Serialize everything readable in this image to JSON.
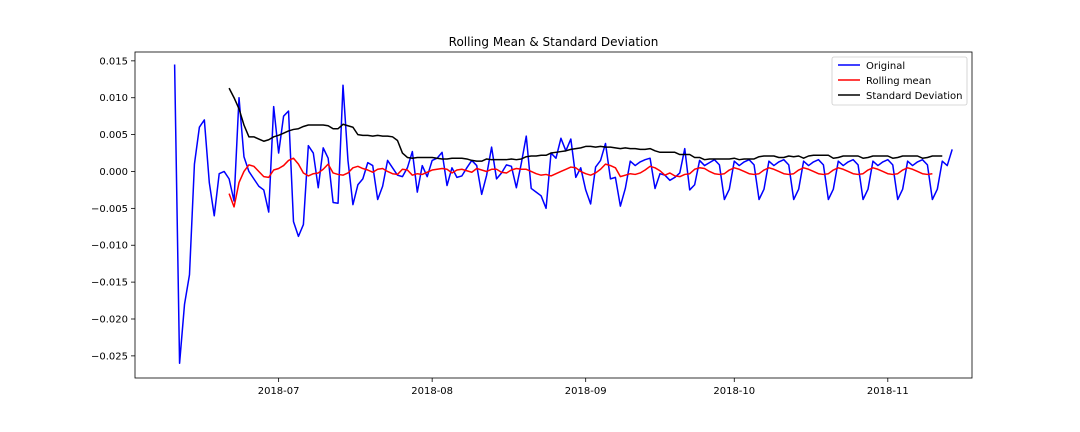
{
  "chart_data": {
    "type": "line",
    "title": "Rolling Mean & Standard Deviation",
    "xlabel": "",
    "ylabel": "",
    "x_start": "2018-06-10",
    "x_range": [
      "2018-06-02",
      "2018-11-18"
    ],
    "ylim": [
      -0.028,
      0.0162
    ],
    "yticks": [
      -0.025,
      -0.02,
      -0.015,
      -0.01,
      -0.005,
      0.0,
      0.005,
      0.01,
      0.015
    ],
    "ytick_labels": [
      "−0.025",
      "−0.020",
      "−0.015",
      "−0.010",
      "−0.005",
      "0.000",
      "0.005",
      "0.010",
      "0.015"
    ],
    "xticks": [
      "2018-07-01",
      "2018-08-01",
      "2018-09-01",
      "2018-10-01",
      "2018-11-01"
    ],
    "xtick_labels": [
      "2018-07",
      "2018-08",
      "2018-09",
      "2018-10",
      "2018-11"
    ],
    "grid": false,
    "legend_position": "top-right",
    "series": [
      {
        "name": "Original",
        "color": "#0000ff",
        "start_date": "2018-06-10",
        "values": [
          0.0145,
          -0.026,
          -0.018,
          -0.014,
          0.001,
          0.006,
          0.007,
          -0.0015,
          -0.006,
          -0.0003,
          0.0,
          -0.001,
          -0.004,
          0.01,
          0.002,
          0.0,
          -0.001,
          -0.002,
          -0.0025,
          -0.0055,
          0.0088,
          0.0025,
          0.0075,
          0.0082,
          -0.0068,
          -0.0088,
          -0.0072,
          0.0035,
          0.0025,
          -0.0022,
          0.0032,
          0.0018,
          -0.0042,
          -0.0043,
          0.0117,
          0.0015,
          -0.0045,
          -0.0018,
          -0.001,
          0.0012,
          0.0008,
          -0.0038,
          -0.002,
          0.0015,
          0.0005,
          -0.0005,
          -0.0007,
          0.0005,
          0.0027,
          -0.0028,
          0.0008,
          -0.0007,
          0.0015,
          0.0018,
          0.0026,
          -0.0019,
          0.0005,
          -0.0008,
          -0.0006,
          0.0005,
          0.0015,
          0.0008,
          -0.0031,
          -0.0005,
          0.0033,
          -0.001,
          -0.0002,
          0.0009,
          0.0007,
          -0.0022,
          0.0011,
          0.0048,
          -0.0023,
          -0.0028,
          -0.0033,
          -0.005,
          0.0025,
          0.0018,
          0.0045,
          0.0028,
          0.0044,
          -0.0008,
          0.0005,
          -0.0025,
          -0.0044,
          0.0006,
          0.0015,
          0.0038,
          -0.001,
          -0.0008,
          -0.0047,
          -0.0023,
          0.0014,
          0.0008,
          0.0013,
          0.0016,
          0.0018,
          -0.0023,
          -0.0003,
          -0.0005,
          -0.0012,
          -0.0008,
          -0.0002,
          0.0031,
          -0.0025,
          -0.0018,
          0.0015,
          0.0008,
          0.0012,
          0.0016,
          0.0009,
          -0.0038,
          -0.0024,
          0.0014,
          0.0008,
          0.0013,
          0.0016,
          0.0009,
          -0.0038,
          -0.0024,
          0.0014,
          0.0008,
          0.0013,
          0.0016,
          0.0009,
          -0.0038,
          -0.0024,
          0.0014,
          0.0008,
          0.0013,
          0.0016,
          0.0009,
          -0.0038,
          -0.0024,
          0.0014,
          0.0008,
          0.0013,
          0.0016,
          0.0009,
          -0.0038,
          -0.0024,
          0.0014,
          0.0008,
          0.0013,
          0.0016,
          0.0009,
          -0.0038,
          -0.0024,
          0.0014,
          0.0008,
          0.0013,
          0.0016,
          0.0009,
          -0.0038,
          -0.0024,
          0.0014,
          0.0008,
          0.003
        ]
      },
      {
        "name": "Rolling mean",
        "color": "#ff0000",
        "start_date": "2018-06-21",
        "values": [
          -0.003,
          -0.0048,
          -0.0015,
          0.0,
          0.0009,
          0.0007,
          0.0,
          -0.0007,
          -0.0008,
          0.0002,
          0.0004,
          0.0008,
          0.0015,
          0.0018,
          0.001,
          -0.0002,
          -0.0006,
          -0.0003,
          -0.0002,
          0.0003,
          0.001,
          -0.0002,
          -0.0004,
          -0.0005,
          -0.0002,
          0.0005,
          0.0007,
          0.0004,
          0.0002,
          -0.0001,
          0.0003,
          0.0004,
          0.0,
          -0.0003,
          -0.0004,
          0.0003,
          0.0002,
          -0.0005,
          -0.0003,
          -0.0004,
          -0.0001,
          0.0002,
          0.0003,
          0.0004,
          0.0003,
          -0.0002,
          0.0002,
          0.0003,
          0.0001,
          -0.0001,
          0.0004,
          0.0002,
          0.0,
          0.0003,
          0.0003,
          -0.0001,
          -0.0002,
          0.0002,
          0.0004,
          0.0003,
          0.0003,
          0.0,
          -0.0003,
          -0.0005,
          -0.0004,
          -0.0006,
          -0.0003,
          0.0,
          0.0003,
          0.0006,
          0.0005,
          0.0,
          -0.0003,
          -0.0005,
          -0.0002,
          0.0003,
          0.001,
          0.0008,
          0.0005,
          -0.0007,
          -0.0005,
          -0.0003,
          -0.0004,
          -0.0002,
          0.0002,
          0.0007,
          0.0005,
          0.0001,
          -0.0005,
          -0.0002,
          -0.0006,
          -0.0007,
          -0.0004,
          -0.0003,
          0.0003,
          0.0005,
          0.0004,
          0.0,
          -0.0003,
          -0.0004,
          -0.0003,
          0.0002,
          0.0005,
          0.0003,
          0.0,
          -0.0003,
          -0.0004,
          -0.0003,
          0.0002,
          0.0005,
          0.0003,
          0.0,
          -0.0003,
          -0.0004,
          -0.0003,
          0.0002,
          0.0005,
          0.0003,
          0.0,
          -0.0003,
          -0.0004,
          -0.0003,
          0.0002,
          0.0005,
          0.0003,
          0.0,
          -0.0003,
          -0.0004,
          -0.0003,
          0.0002,
          0.0005,
          0.0003,
          0.0,
          -0.0003,
          -0.0004,
          -0.0003,
          0.0002,
          0.0005,
          0.0003,
          0.0,
          -0.0003,
          -0.0004,
          -0.0003
        ]
      },
      {
        "name": "Standard Deviation",
        "color": "#000000",
        "start_date": "2018-06-21",
        "values": [
          0.0113,
          0.01,
          0.0085,
          0.0063,
          0.0047,
          0.0047,
          0.0044,
          0.0041,
          0.0043,
          0.0047,
          0.0049,
          0.0052,
          0.0055,
          0.0057,
          0.0058,
          0.0061,
          0.0063,
          0.0063,
          0.0063,
          0.0063,
          0.0062,
          0.0058,
          0.0058,
          0.0064,
          0.0062,
          0.006,
          0.005,
          0.0049,
          0.0049,
          0.0048,
          0.0049,
          0.0048,
          0.0048,
          0.0047,
          0.0042,
          0.0025,
          0.0019,
          0.0018,
          0.0019,
          0.0019,
          0.0019,
          0.0019,
          0.0018,
          0.0017,
          0.0017,
          0.0018,
          0.0018,
          0.0018,
          0.0017,
          0.0015,
          0.0014,
          0.0014,
          0.0017,
          0.0016,
          0.0016,
          0.0016,
          0.0016,
          0.0017,
          0.0016,
          0.0017,
          0.002,
          0.0021,
          0.0021,
          0.0022,
          0.0022,
          0.0025,
          0.0026,
          0.0027,
          0.0028,
          0.003,
          0.0031,
          0.0032,
          0.0034,
          0.0034,
          0.0033,
          0.0034,
          0.0033,
          0.0033,
          0.0032,
          0.0031,
          0.0032,
          0.0031,
          0.0031,
          0.003,
          0.003,
          0.0031,
          0.0028,
          0.0026,
          0.0026,
          0.0026,
          0.0026,
          0.0023,
          0.0023,
          0.0023,
          0.0019,
          0.0019,
          0.0016,
          0.0017,
          0.0017,
          0.0017,
          0.0017,
          0.0017,
          0.0018,
          0.0016,
          0.0017,
          0.0017,
          0.0017,
          0.002,
          0.0021,
          0.0021,
          0.0021,
          0.0019,
          0.0019,
          0.0021,
          0.002,
          0.0021,
          0.0018,
          0.0021,
          0.0022,
          0.0022,
          0.0022,
          0.0022,
          0.0018,
          0.0019,
          0.0021,
          0.0021,
          0.0021,
          0.0021,
          0.0018,
          0.0019,
          0.0021,
          0.0021,
          0.0021,
          0.0021,
          0.0018,
          0.0019,
          0.0021,
          0.0021,
          0.0021,
          0.0021,
          0.0018,
          0.0019,
          0.0021,
          0.0021,
          0.0021
        ]
      }
    ]
  }
}
